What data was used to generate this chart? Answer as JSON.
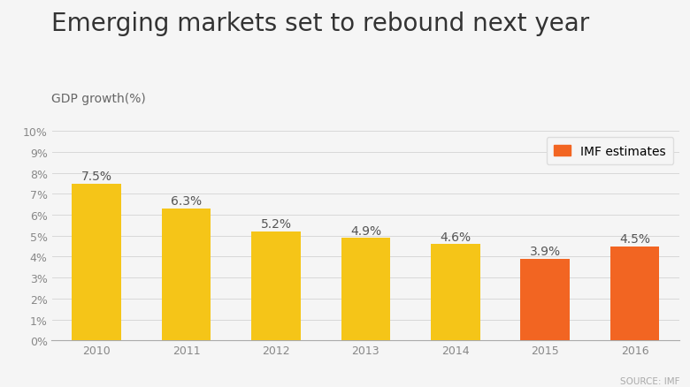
{
  "title": "Emerging markets set to rebound next year",
  "subtitle": "GDP growth(%)",
  "source": "SOURCE: IMF",
  "categories": [
    "2010",
    "2011",
    "2012",
    "2013",
    "2014",
    "2015",
    "2016"
  ],
  "values": [
    7.5,
    6.3,
    5.2,
    4.9,
    4.6,
    3.9,
    4.5
  ],
  "bar_colors": [
    "#F5C518",
    "#F5C518",
    "#F5C518",
    "#F5C518",
    "#F5C518",
    "#F26522",
    "#F26522"
  ],
  "ylim": [
    0,
    10
  ],
  "yticks": [
    0,
    1,
    2,
    3,
    4,
    5,
    6,
    7,
    8,
    9,
    10
  ],
  "ytick_labels": [
    "0%",
    "1%",
    "2%",
    "3%",
    "4%",
    "5%",
    "6%",
    "7%",
    "8%",
    "9%",
    "10%"
  ],
  "background_color": "#F5F5F5",
  "grid_color": "#D8D8D8",
  "title_fontsize": 20,
  "subtitle_fontsize": 10,
  "tick_fontsize": 9,
  "bar_label_fontsize": 10,
  "legend_label": "IMF estimates",
  "legend_color": "#F26522",
  "source_fontsize": 7.5
}
